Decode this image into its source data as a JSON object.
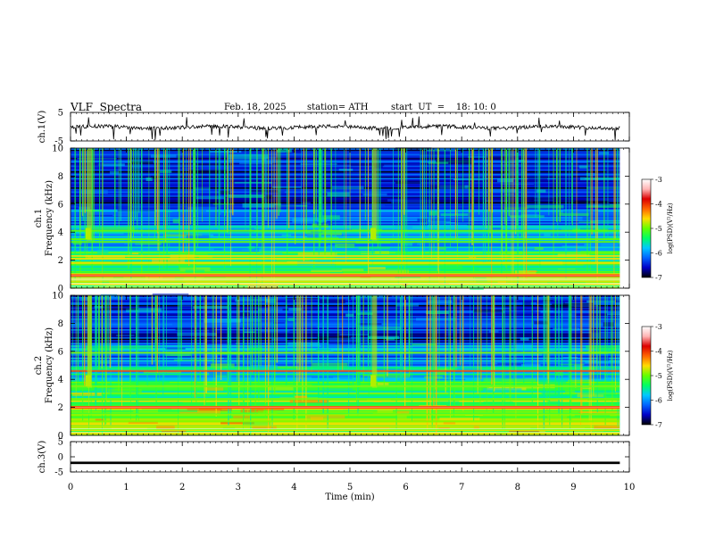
{
  "header": {
    "title": "VLF  Spectra",
    "date": "Feb. 18, 2025",
    "station": "station= ATH",
    "start": "start  UT  =    18: 10: 0"
  },
  "chart_data": {
    "type": "heatmap",
    "x": {
      "label": "Time  (min)",
      "range": [
        0,
        10
      ],
      "ticks": [
        0,
        1,
        2,
        3,
        4,
        5,
        6,
        7,
        8,
        9,
        10
      ],
      "data_end": 9.83
    },
    "panels": [
      {
        "id": "ch1_voltage",
        "type": "line",
        "ylabel": "ch.1(V)",
        "ylim": [
          -5,
          5
        ],
        "yticks": [
          5,
          -5
        ],
        "trace": "noisy waveform near 0 V with sparse negative spikes"
      },
      {
        "id": "ch1_spectrogram",
        "type": "heatmap",
        "ylabel": "Frequency  (kHz)",
        "ylabel2": "ch.1",
        "ylim": [
          0,
          10
        ],
        "yticks": [
          0,
          2,
          4,
          6,
          8,
          10
        ],
        "features": {
          "bright_bands_khz": [
            0.3,
            0.6,
            1.0,
            1.8,
            2.1,
            2.3,
            3.3,
            3.5,
            4.1
          ],
          "hot_band_khz": 0.9,
          "strong_activity_min": [
            0.3,
            5.4
          ],
          "background": "dark blue / black above 6 kHz with green-cyan vertical spherics"
        }
      },
      {
        "id": "ch2_spectrogram",
        "type": "heatmap",
        "ylabel": "Frequency  (kHz)",
        "ylabel2": "ch.2",
        "ylim": [
          0,
          10
        ],
        "yticks": [
          0,
          2,
          4,
          6,
          8,
          10
        ],
        "features": {
          "bright_bands_khz": [
            0.4,
            1.0,
            1.5,
            2.6,
            3.5,
            4.6,
            5.9
          ],
          "hot_band_khz": 2.0,
          "strong_activity_min": [
            0.3,
            5.4
          ],
          "background": "green / cyan below 4 kHz, dark blue above"
        }
      },
      {
        "id": "ch3_voltage",
        "type": "line",
        "ylabel": "ch.3(V)",
        "ylim": [
          -5,
          5
        ],
        "yticks": [
          5,
          0,
          -5
        ],
        "trace": "thick flat band at about -2 V"
      }
    ],
    "colorbar": {
      "label": "log(PSD)(V²/Hz)",
      "range": [
        -7,
        -3
      ],
      "ticks": [
        -3,
        -4,
        -5,
        -6,
        -7
      ],
      "stops": [
        "#000000",
        "#0000c8",
        "#0064ff",
        "#00c8ff",
        "#00ff64",
        "#64ff00",
        "#ffdc00",
        "#ff6400",
        "#dc0000",
        "#ffb4b4",
        "#ffffff"
      ]
    }
  }
}
